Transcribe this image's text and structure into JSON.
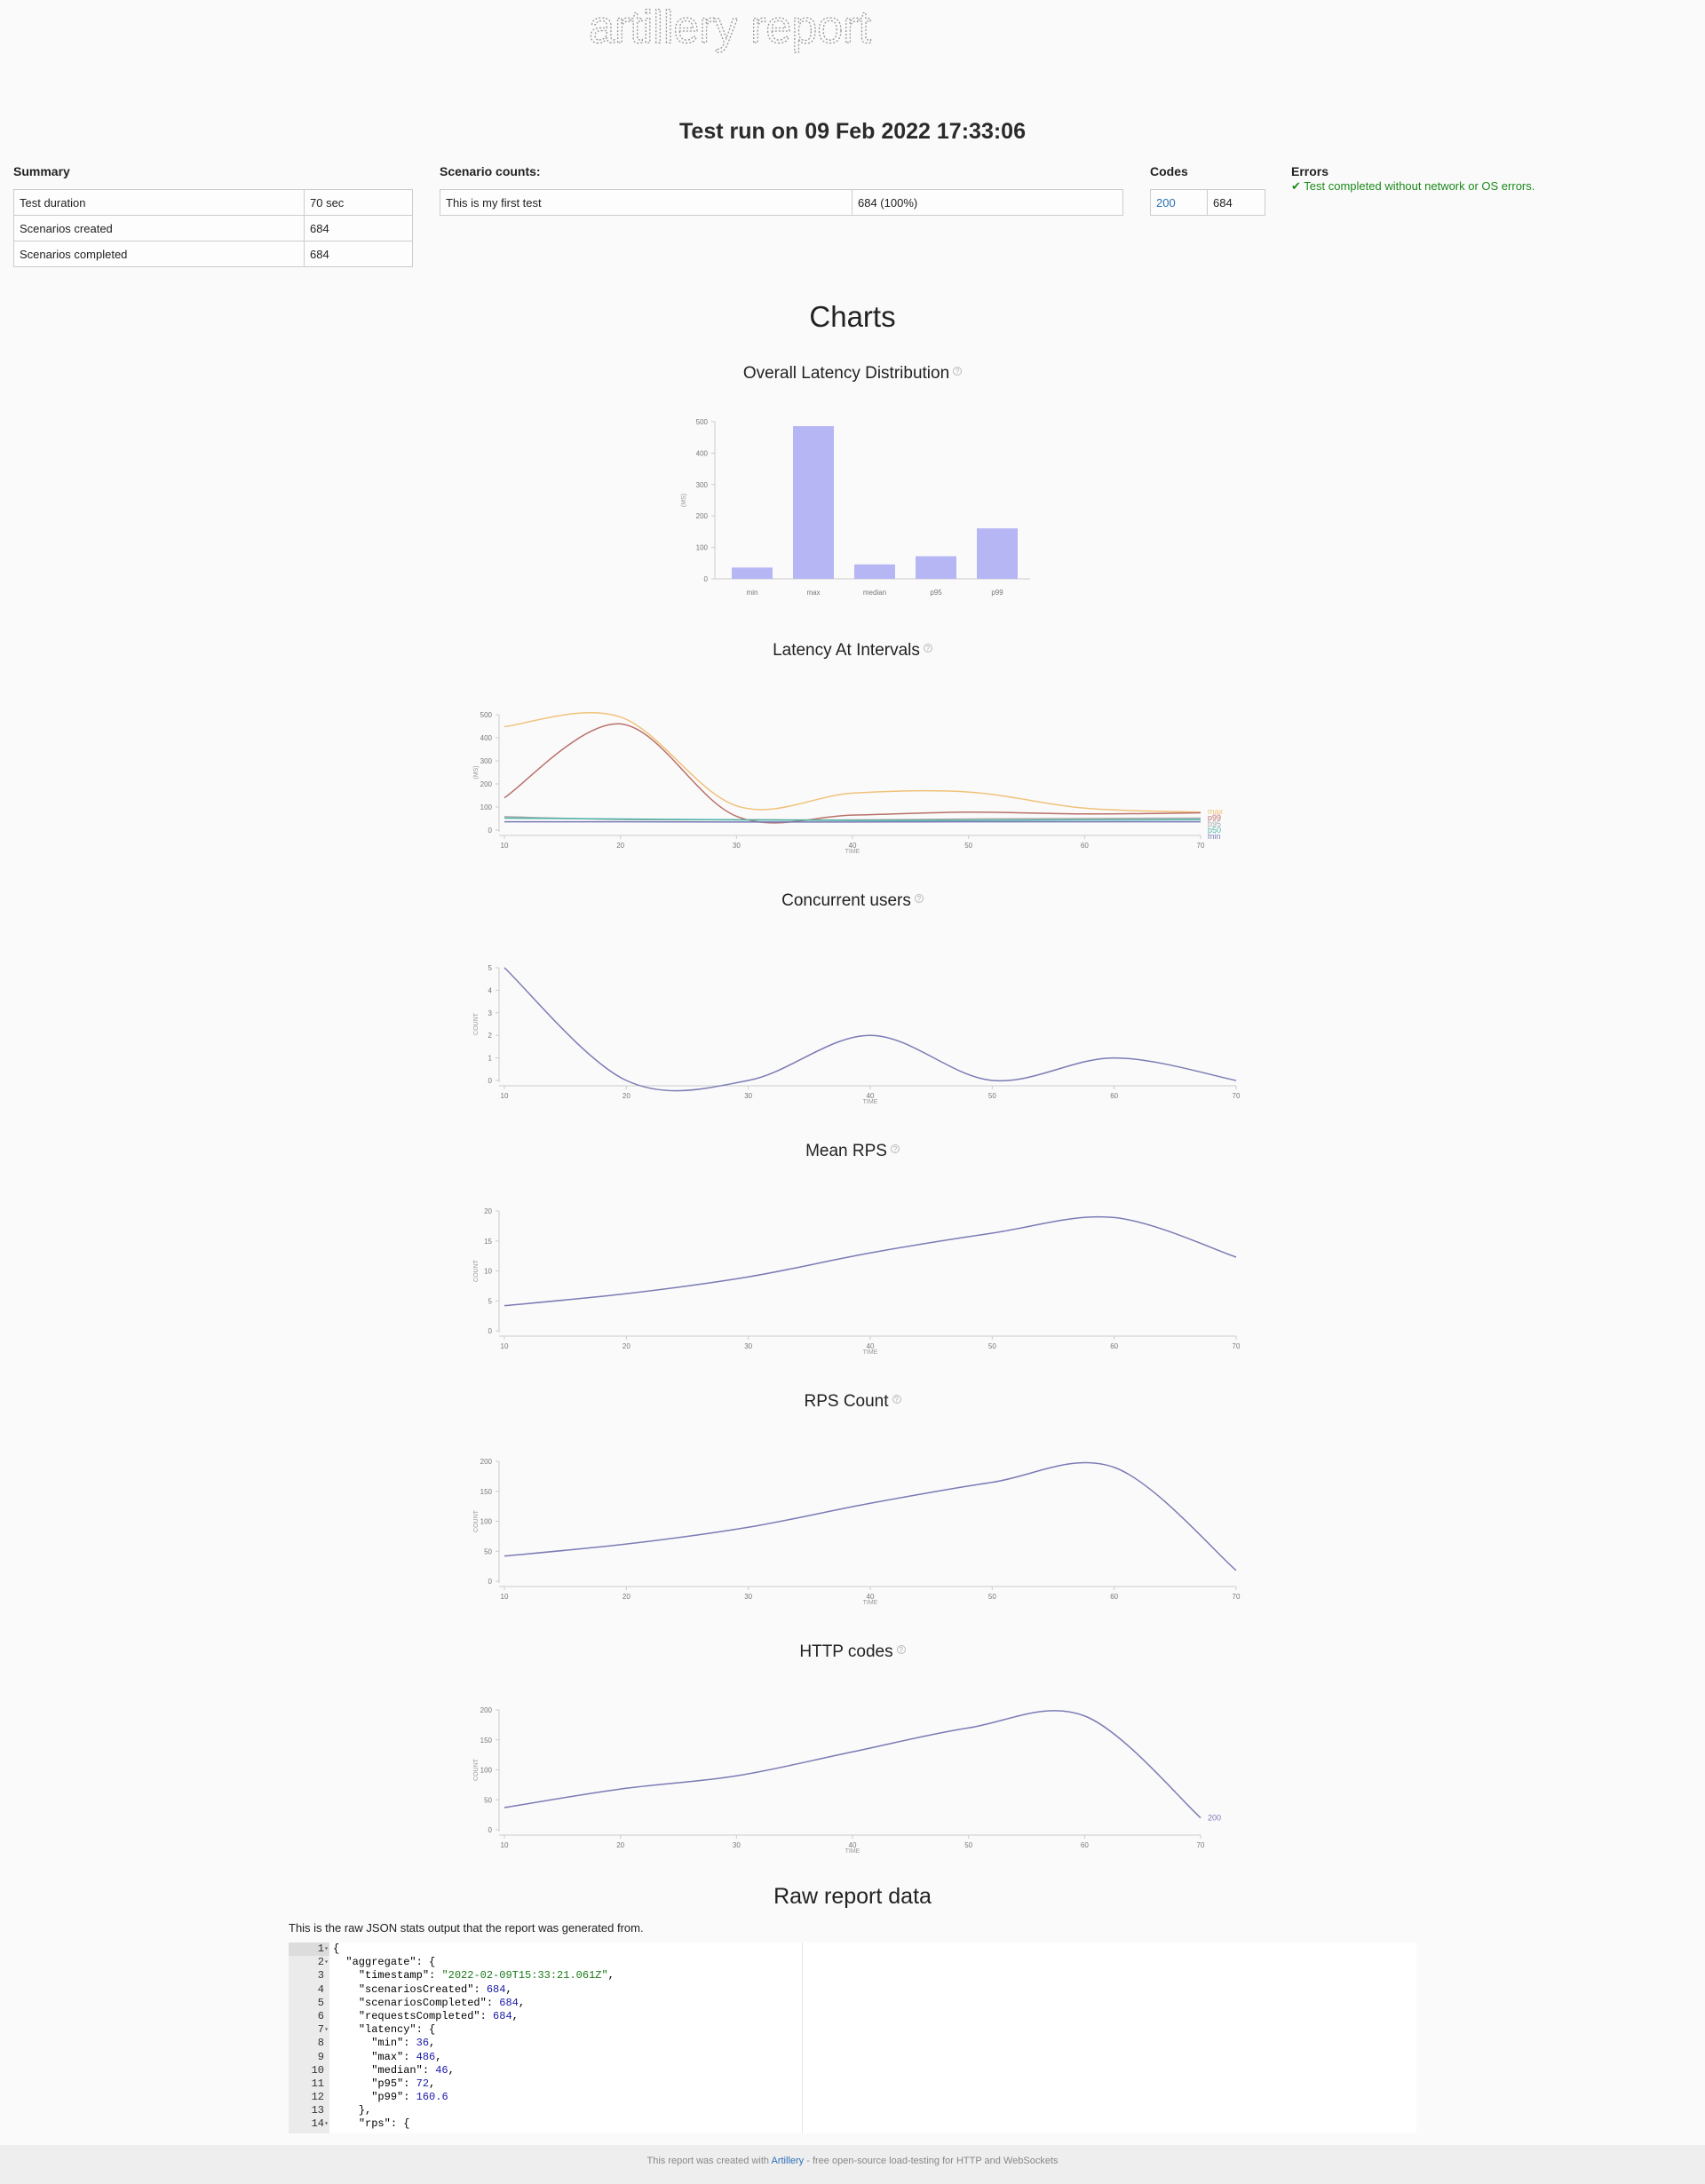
{
  "logo_text": "artillery report",
  "run_title": "Test run on 09 Feb 2022 17:33:06",
  "summary": {
    "label": "Summary",
    "rows": [
      {
        "key": "Test duration",
        "value": "70 sec"
      },
      {
        "key": "Scenarios created",
        "value": "684"
      },
      {
        "key": "Scenarios completed",
        "value": "684"
      }
    ]
  },
  "scenario_counts": {
    "label": "Scenario counts:",
    "rows": [
      {
        "name": "This is my first test",
        "count": "684 (100%)"
      }
    ]
  },
  "codes": {
    "label": "Codes",
    "rows": [
      {
        "code": "200",
        "count": "684"
      }
    ]
  },
  "errors": {
    "label": "Errors",
    "message": "✔ Test completed without network or OS errors."
  },
  "charts_title": "Charts",
  "chart_data": [
    {
      "type": "bar",
      "title": "Overall Latency Distribution",
      "ylabel": "(MS)",
      "categories": [
        "min",
        "max",
        "median",
        "p95",
        "p99"
      ],
      "values": [
        36,
        486,
        46,
        72,
        160.6
      ],
      "ylim": [
        0,
        500
      ],
      "yticks": [
        0,
        100,
        200,
        300,
        400,
        500
      ],
      "color": "#b7b6f4"
    },
    {
      "type": "line",
      "title": "Latency At Intervals",
      "ylabel": "(MS)",
      "xlabel": "TIME",
      "x": [
        10,
        20,
        30,
        40,
        50,
        60,
        70
      ],
      "ylim": [
        0,
        500
      ],
      "yticks": [
        0,
        100,
        200,
        300,
        400,
        500
      ],
      "series": [
        {
          "name": "max",
          "color": "#f0c27a",
          "values": [
            448,
            490,
            105,
            160,
            165,
            95,
            78
          ]
        },
        {
          "name": "p99",
          "color": "#b9706a",
          "values": [
            140,
            460,
            60,
            65,
            78,
            70,
            75
          ]
        },
        {
          "name": "p95",
          "color": "#a8a8a8",
          "values": [
            58,
            46,
            45,
            44,
            48,
            50,
            52
          ]
        },
        {
          "name": "p50",
          "color": "#4fb3a8",
          "values": [
            52,
            48,
            44,
            42,
            42,
            44,
            45
          ]
        },
        {
          "name": "min",
          "color": "#7b7bb5",
          "values": [
            36,
            36,
            35,
            35,
            36,
            36,
            36
          ]
        }
      ]
    },
    {
      "type": "line",
      "title": "Concurrent users",
      "ylabel": "COUNT",
      "xlabel": "TIME",
      "x": [
        10,
        20,
        30,
        40,
        50,
        60,
        70
      ],
      "ylim": [
        0,
        5
      ],
      "yticks": [
        0,
        1,
        2,
        3,
        4,
        5
      ],
      "series": [
        {
          "color": "#7b7bb5",
          "values": [
            5,
            0,
            0,
            2,
            0,
            1,
            0
          ]
        }
      ]
    },
    {
      "type": "line",
      "title": "Mean RPS",
      "ylabel": "COUNT",
      "xlabel": "TIME",
      "x": [
        10,
        20,
        30,
        40,
        50,
        60,
        70
      ],
      "ylim": [
        0,
        20
      ],
      "yticks": [
        0,
        5,
        10,
        15,
        20
      ],
      "series": [
        {
          "color": "#7b7bb5",
          "values": [
            4.2,
            6.2,
            9,
            13,
            16.3,
            18.9,
            12.3
          ]
        }
      ]
    },
    {
      "type": "line",
      "title": "RPS Count",
      "ylabel": "COUNT",
      "xlabel": "TIME",
      "x": [
        10,
        20,
        30,
        40,
        50,
        60,
        70
      ],
      "ylim": [
        0,
        200
      ],
      "yticks": [
        0,
        50,
        100,
        150,
        200
      ],
      "series": [
        {
          "color": "#7b7bb5",
          "values": [
            42,
            62,
            90,
            130,
            165,
            190,
            18
          ]
        }
      ]
    },
    {
      "type": "line",
      "title": "HTTP codes",
      "ylabel": "COUNT",
      "xlabel": "TIME",
      "x": [
        10,
        20,
        30,
        40,
        50,
        60,
        70
      ],
      "ylim": [
        0,
        200
      ],
      "yticks": [
        0,
        50,
        100,
        150,
        200
      ],
      "series": [
        {
          "name": "200",
          "color": "#7b7bb5",
          "values": [
            37,
            68,
            90,
            130,
            170,
            190,
            20
          ]
        }
      ]
    }
  ],
  "raw": {
    "title": "Raw report data",
    "intro": "This is the raw JSON stats output that the report was generated from.",
    "lines": [
      {
        "n": "1",
        "text": "{",
        "fold": true
      },
      {
        "n": "2",
        "text": "  \"aggregate\": {",
        "fold": true
      },
      {
        "n": "3",
        "text": "    \"timestamp\": \"2022-02-09T15:33:21.061Z\","
      },
      {
        "n": "4",
        "text": "    \"scenariosCreated\": 684,"
      },
      {
        "n": "5",
        "text": "    \"scenariosCompleted\": 684,"
      },
      {
        "n": "6",
        "text": "    \"requestsCompleted\": 684,"
      },
      {
        "n": "7",
        "text": "    \"latency\": {",
        "fold": true
      },
      {
        "n": "8",
        "text": "      \"min\": 36,"
      },
      {
        "n": "9",
        "text": "      \"max\": 486,"
      },
      {
        "n": "10",
        "text": "      \"median\": 46,"
      },
      {
        "n": "11",
        "text": "      \"p95\": 72,"
      },
      {
        "n": "12",
        "text": "      \"p99\": 160.6"
      },
      {
        "n": "13",
        "text": "    },"
      },
      {
        "n": "14",
        "text": "    \"rps\": {",
        "fold": true
      }
    ]
  },
  "footer": {
    "prefix": "This report was created with ",
    "link": "Artillery",
    "suffix": " - free open-source load-testing for HTTP and WebSockets"
  }
}
